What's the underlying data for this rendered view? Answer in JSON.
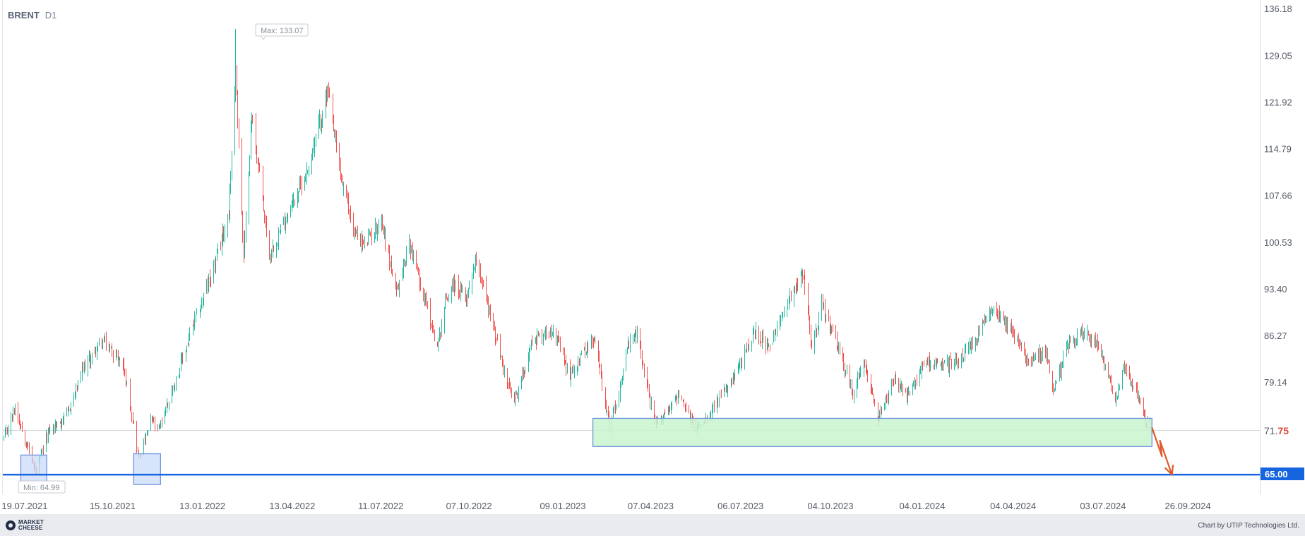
{
  "header": {
    "symbol": "BRENT",
    "timeframe": "D1"
  },
  "markers": {
    "max_label": "Max: 133.07",
    "min_label": "Min: 64.99"
  },
  "price_tags": {
    "current_int": "71.",
    "current_dec": "75",
    "level": "65.00"
  },
  "footer": {
    "logo_line1": "MARKET",
    "logo_line2": "CHEESE",
    "credit": "Chart by UTIP Technologies Ltd."
  },
  "colors": {
    "up": "#26b8a0",
    "down": "#ef5350",
    "level_line": "#1565e0",
    "zone_green": "#c8f5cf",
    "zone_blue": "#c9dbf7",
    "arrow": "#e0592a"
  },
  "icons": {
    "logo": "market-cheese-logo-icon",
    "arrow": "down-forecast-arrow-icon"
  },
  "chart_data": {
    "type": "candlestick",
    "title": "BRENT D1",
    "y_ticks": [
      "136.18",
      "129.05",
      "121.92",
      "114.79",
      "107.66",
      "100.53",
      "93.40",
      "86.27",
      "79.14"
    ],
    "ylim": [
      62.0,
      137.5
    ],
    "x_ticks": [
      {
        "date": "2021-07-19",
        "label": "19.07.2021"
      },
      {
        "date": "2021-10-15",
        "label": "15.10.2021"
      },
      {
        "date": "2022-01-13",
        "label": "13.01.2022"
      },
      {
        "date": "2022-04-13",
        "label": "13.04.2022"
      },
      {
        "date": "2022-07-11",
        "label": "11.07.2022"
      },
      {
        "date": "2022-10-07",
        "label": "07.10.2022"
      },
      {
        "date": "2023-01-09",
        "label": "09.01.2023"
      },
      {
        "date": "2023-04-07",
        "label": "07.04.2023"
      },
      {
        "date": "2023-07-06",
        "label": "06.07.2023"
      },
      {
        "date": "2023-10-04",
        "label": "04.10.2023"
      },
      {
        "date": "2024-01-04",
        "label": "04.01.2024"
      },
      {
        "date": "2024-04-04",
        "label": "04.04.2024"
      },
      {
        "date": "2024-07-03",
        "label": "03.07.2024"
      },
      {
        "date": "2024-09-26",
        "label": "26.09.2024"
      }
    ],
    "xlim": [
      "2021-07-18",
      "2024-12-28"
    ],
    "current_price": 71.75,
    "horizontal_level": 65.0,
    "max": {
      "date": "2022-03-08",
      "value": 133.07
    },
    "min": {
      "date": "2021-08-20",
      "value": 64.99
    },
    "zones": [
      {
        "color": "green",
        "x_start": "2023-03-01",
        "x_end": "2024-09-11",
        "y_low": 69.3,
        "y_high": 73.6
      },
      {
        "color": "blue",
        "x_start": "2021-08-05",
        "x_end": "2021-08-31",
        "y_low": 63.5,
        "y_high": 68.0
      },
      {
        "color": "blue",
        "x_start": "2021-11-26",
        "x_end": "2021-12-23",
        "y_low": 63.5,
        "y_high": 68.2
      }
    ],
    "forecast_arrow": [
      {
        "date": "2024-09-11",
        "value": 72.2
      },
      {
        "date": "2024-09-21",
        "value": 67.8
      },
      {
        "date": "2024-09-19",
        "value": 70.2
      },
      {
        "date": "2024-10-01",
        "value": 65.0
      }
    ],
    "close_path": [
      {
        "date": "2021-07-19",
        "value": 70.5
      },
      {
        "date": "2021-07-30",
        "value": 75.4
      },
      {
        "date": "2021-08-20",
        "value": 65.2
      },
      {
        "date": "2021-09-01",
        "value": 71.5
      },
      {
        "date": "2021-09-20",
        "value": 74.0
      },
      {
        "date": "2021-10-06",
        "value": 81.0
      },
      {
        "date": "2021-10-25",
        "value": 85.5
      },
      {
        "date": "2021-11-15",
        "value": 82.0
      },
      {
        "date": "2021-11-26",
        "value": 72.5
      },
      {
        "date": "2021-12-01",
        "value": 67.5
      },
      {
        "date": "2021-12-14",
        "value": 73.5
      },
      {
        "date": "2021-12-20",
        "value": 71.5
      },
      {
        "date": "2022-01-10",
        "value": 81.0
      },
      {
        "date": "2022-01-25",
        "value": 88.0
      },
      {
        "date": "2022-02-14",
        "value": 96.5
      },
      {
        "date": "2022-03-01",
        "value": 105.0
      },
      {
        "date": "2022-03-08",
        "value": 127.0
      },
      {
        "date": "2022-03-16",
        "value": 98.0
      },
      {
        "date": "2022-03-24",
        "value": 120.0
      },
      {
        "date": "2022-04-11",
        "value": 98.5
      },
      {
        "date": "2022-05-02",
        "value": 106.0
      },
      {
        "date": "2022-05-18",
        "value": 111.0
      },
      {
        "date": "2022-06-08",
        "value": 123.5
      },
      {
        "date": "2022-06-22",
        "value": 110.0
      },
      {
        "date": "2022-07-05",
        "value": 102.0
      },
      {
        "date": "2022-07-15",
        "value": 100.0
      },
      {
        "date": "2022-08-01",
        "value": 104.0
      },
      {
        "date": "2022-08-16",
        "value": 92.5
      },
      {
        "date": "2022-08-29",
        "value": 100.5
      },
      {
        "date": "2022-09-14",
        "value": 91.5
      },
      {
        "date": "2022-09-26",
        "value": 84.5
      },
      {
        "date": "2022-10-04",
        "value": 91.5
      },
      {
        "date": "2022-10-11",
        "value": 94.0
      },
      {
        "date": "2022-10-25",
        "value": 92.0
      },
      {
        "date": "2022-11-04",
        "value": 98.5
      },
      {
        "date": "2022-11-20",
        "value": 88.0
      },
      {
        "date": "2022-12-05",
        "value": 79.0
      },
      {
        "date": "2022-12-12",
        "value": 76.0
      },
      {
        "date": "2022-12-30",
        "value": 85.5
      },
      {
        "date": "2023-01-20",
        "value": 87.5
      },
      {
        "date": "2023-02-05",
        "value": 80.0
      },
      {
        "date": "2023-02-20",
        "value": 84.0
      },
      {
        "date": "2023-03-03",
        "value": 85.5
      },
      {
        "date": "2023-03-17",
        "value": 72.5
      },
      {
        "date": "2023-03-27",
        "value": 77.5
      },
      {
        "date": "2023-04-04",
        "value": 84.5
      },
      {
        "date": "2023-04-14",
        "value": 86.5
      },
      {
        "date": "2023-05-02",
        "value": 72.5
      },
      {
        "date": "2023-05-25",
        "value": 77.0
      },
      {
        "date": "2023-06-12",
        "value": 72.0
      },
      {
        "date": "2023-06-30",
        "value": 75.5
      },
      {
        "date": "2023-07-20",
        "value": 79.5
      },
      {
        "date": "2023-08-10",
        "value": 87.0
      },
      {
        "date": "2023-08-25",
        "value": 84.0
      },
      {
        "date": "2023-09-10",
        "value": 91.0
      },
      {
        "date": "2023-09-27",
        "value": 96.0
      },
      {
        "date": "2023-10-06",
        "value": 84.5
      },
      {
        "date": "2023-10-16",
        "value": 91.0
      },
      {
        "date": "2023-11-01",
        "value": 84.5
      },
      {
        "date": "2023-11-16",
        "value": 77.5
      },
      {
        "date": "2023-11-28",
        "value": 82.5
      },
      {
        "date": "2023-12-12",
        "value": 73.5
      },
      {
        "date": "2023-12-27",
        "value": 79.5
      },
      {
        "date": "2024-01-10",
        "value": 77.0
      },
      {
        "date": "2024-01-29",
        "value": 82.5
      },
      {
        "date": "2024-02-15",
        "value": 81.5
      },
      {
        "date": "2024-03-05",
        "value": 83.0
      },
      {
        "date": "2024-03-20",
        "value": 86.0
      },
      {
        "date": "2024-04-05",
        "value": 91.0
      },
      {
        "date": "2024-04-22",
        "value": 87.0
      },
      {
        "date": "2024-05-08",
        "value": 83.0
      },
      {
        "date": "2024-05-28",
        "value": 83.5
      },
      {
        "date": "2024-06-04",
        "value": 77.5
      },
      {
        "date": "2024-06-20",
        "value": 85.5
      },
      {
        "date": "2024-07-05",
        "value": 87.0
      },
      {
        "date": "2024-07-19",
        "value": 84.5
      },
      {
        "date": "2024-08-05",
        "value": 76.5
      },
      {
        "date": "2024-08-13",
        "value": 81.0
      },
      {
        "date": "2024-08-28",
        "value": 77.5
      },
      {
        "date": "2024-09-04",
        "value": 73.0
      },
      {
        "date": "2024-09-10",
        "value": 71.75
      }
    ]
  }
}
